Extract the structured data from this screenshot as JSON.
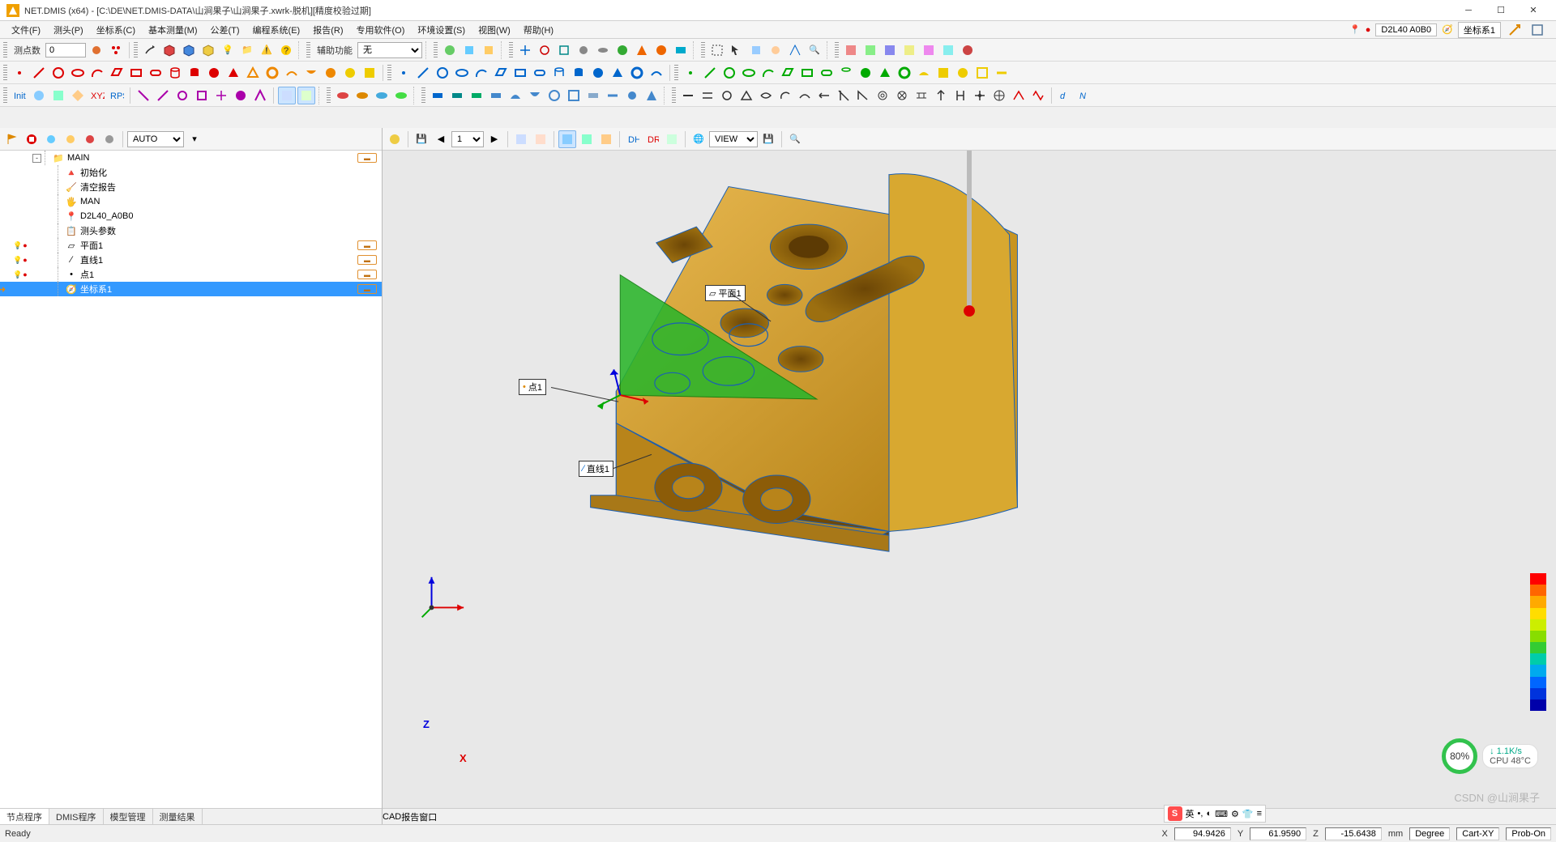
{
  "title": "NET.DMIS (x64) - [C:\\DE\\NET.DMIS-DATA\\山涧果子\\山涧果子.xwrk-脱机][精度校验过期]",
  "menus": [
    "文件(F)",
    "测头(P)",
    "坐标系(C)",
    "基本测量(M)",
    "公差(T)",
    "编程系统(E)",
    "报告(R)",
    "专用软件(O)",
    "环境设置(S)",
    "视图(W)",
    "帮助(H)"
  ],
  "menu_right": {
    "probe": "D2L40 A0B0",
    "cs": "坐标系1"
  },
  "toolbar1": {
    "label": "测点数",
    "value": "0",
    "aux_label": "辅助功能",
    "aux_value": "无"
  },
  "toolbar_left2": {
    "auto": "AUTO"
  },
  "tree": [
    {
      "lvl": 0,
      "exp": "-",
      "icon": "folder",
      "label": "MAIN",
      "tag": true
    },
    {
      "lvl": 1,
      "icon": "init",
      "label": "初始化"
    },
    {
      "lvl": 1,
      "icon": "clear",
      "label": "清空报告"
    },
    {
      "lvl": 1,
      "icon": "man",
      "label": "MAN"
    },
    {
      "lvl": 1,
      "icon": "probe",
      "label": "D2L40_A0B0"
    },
    {
      "lvl": 1,
      "icon": "param",
      "label": "测头参数"
    },
    {
      "lvl": 1,
      "icon": "plane",
      "label": "平面1",
      "tag": true,
      "marks": true
    },
    {
      "lvl": 1,
      "icon": "line",
      "label": "直线1",
      "tag": true,
      "marks": true
    },
    {
      "lvl": 1,
      "icon": "point",
      "label": "点1",
      "tag": true,
      "marks": true
    },
    {
      "lvl": 1,
      "icon": "cs",
      "label": "坐标系1",
      "tag": true,
      "sel": true,
      "arrow": true
    }
  ],
  "left_tabs": [
    "节点程序",
    "DMIS程序",
    "模型管理",
    "测量结果"
  ],
  "right_toolbar": {
    "view": "VIEW",
    "page": "1"
  },
  "cad_labels": {
    "plane": "平面1",
    "point": "点1",
    "line": "直线1"
  },
  "axes": {
    "z": "Z",
    "x": "X"
  },
  "right_tabs": [
    "CAD",
    "报告窗口"
  ],
  "status": {
    "ready": "Ready",
    "x_lbl": "X",
    "x": "94.9426",
    "y_lbl": "Y",
    "y": "61.9590",
    "z_lbl": "Z",
    "z": "-15.6438",
    "unit": "mm",
    "angle": "Degree",
    "plane": "Cart-XY",
    "probe": "Prob-On"
  },
  "cpu": {
    "pct": "80%",
    "rate": "1.1K/s",
    "temp": "CPU 48°C"
  },
  "ime": {
    "lang": "英",
    "punct": "•,",
    "full": "◐"
  },
  "watermark": "CSDN @山涧果子",
  "colors": {
    "model": "#d4a030",
    "model_dk": "#9c6f10",
    "green": "#2bb52b",
    "edge": "#1a5fb4",
    "scale": [
      "#ff0000",
      "#ff6600",
      "#ffaa00",
      "#ffdd00",
      "#ccee00",
      "#88dd00",
      "#33cc33",
      "#00ccaa",
      "#00aaee",
      "#0066ff",
      "#0033dd",
      "#0000aa"
    ]
  }
}
